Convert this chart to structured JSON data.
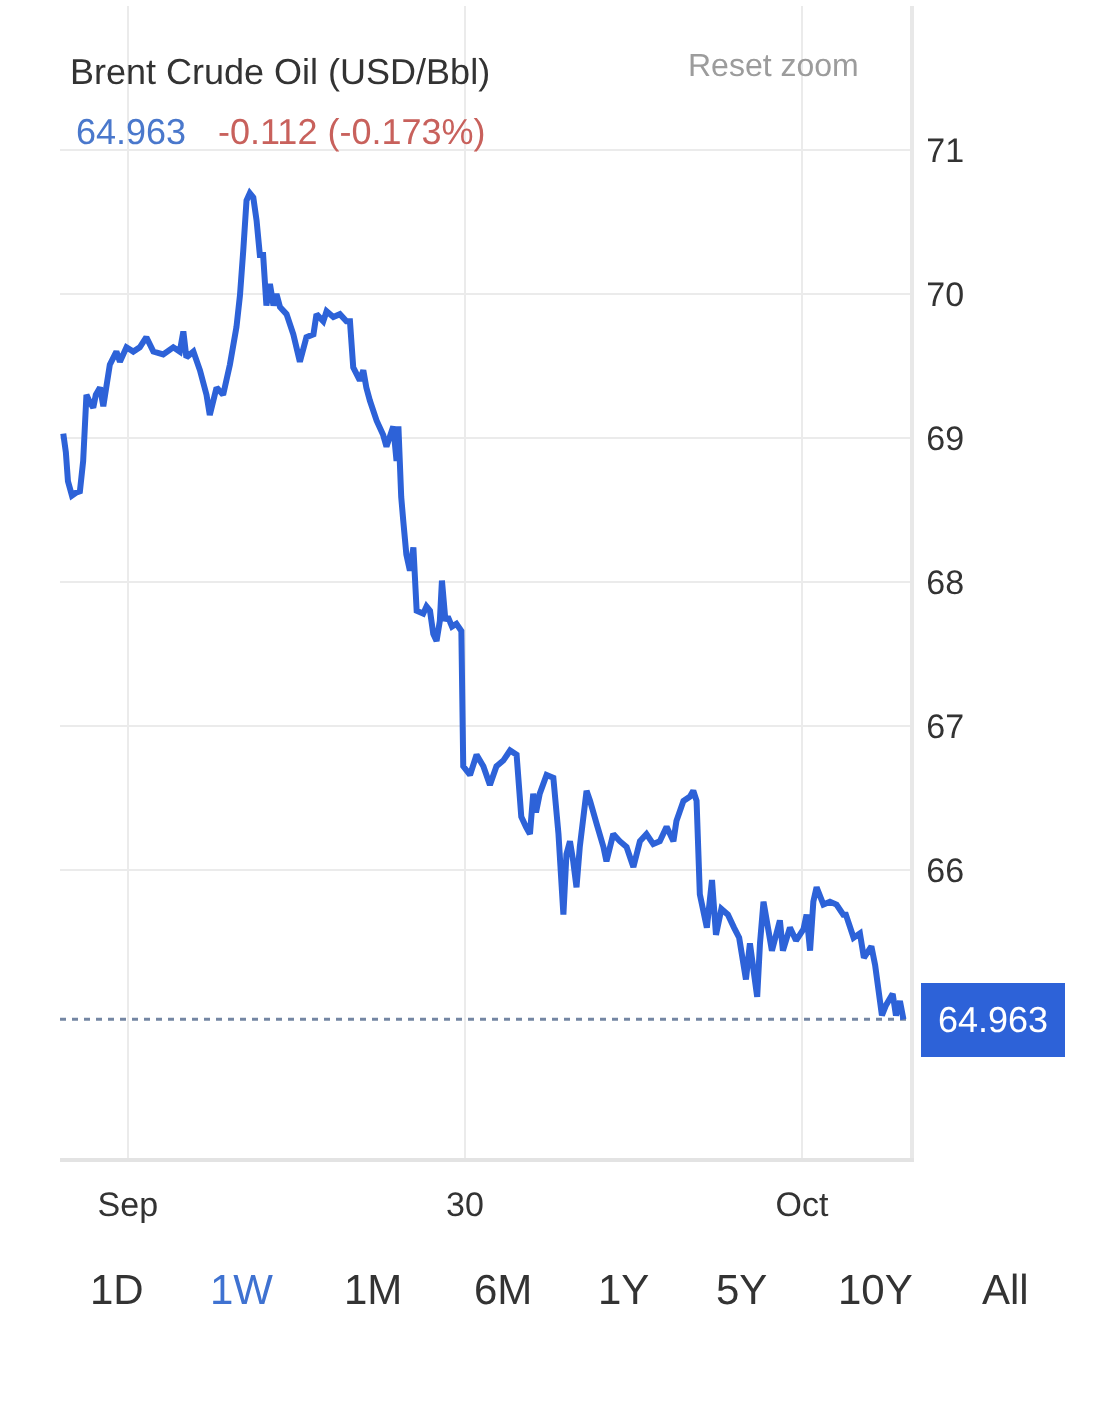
{
  "chart_data": {
    "type": "line",
    "title": "Brent Crude Oil (USD/Bbl)",
    "subtitle": "64.963",
    "annotations": [
      "-0.112 (-0.173%)",
      "Reset zoom",
      "1D",
      "1W",
      "1M",
      "6M",
      "1Y",
      "5Y",
      "10Y",
      "All"
    ],
    "x": [
      "--09-28T19:24",
      "--09-28T19:35",
      "--09-28T19:44",
      "--09-28T20:01",
      "--09-28T20:18",
      "--09-28T20:35",
      "--09-28T20:49",
      "--09-28T21:03",
      "--09-28T21:17",
      "--09-28T21:32",
      "--09-28T21:43",
      "--09-28T22:01",
      "--09-28T22:15",
      "--09-28T22:43",
      "--09-28T23:11",
      "--09-28T23:26",
      "--09-28T23:54",
      "--09-29T00:23",
      "--09-29T00:51",
      "--09-29T01:19",
      "--09-29T01:49",
      "--09-29T02:31",
      "--09-29T03:14",
      "--09-29T03:42",
      "--09-29T03:57",
      "--09-29T04:10",
      "--09-29T04:40",
      "--09-29T05:08",
      "--09-29T05:36",
      "--09-29T05:50",
      "--09-29T06:19",
      "--09-29T06:47",
      "--09-29T07:16",
      "--09-29T07:44",
      "--09-29T07:59",
      "--09-29T08:13",
      "--09-29T08:27",
      "--09-29T08:41",
      "--09-29T08:56",
      "--09-29T09:10",
      "--09-29T09:24",
      "--09-29T09:38",
      "--09-29T09:52",
      "--09-29T10:07",
      "--09-29T10:22",
      "--09-29T10:35",
      "--09-29T10:50",
      "--09-29T11:18",
      "--09-29T11:47",
      "--09-29T12:15",
      "--09-29T12:43",
      "--09-29T13:13",
      "--09-29T13:26",
      "--09-29T13:55",
      "--09-29T14:09",
      "--09-29T14:38",
      "--09-29T15:06",
      "--09-29T15:34",
      "--09-29T15:49",
      "--09-29T16:03",
      "--09-29T16:31",
      "--09-29T16:46",
      "--09-29T16:59",
      "--09-29T17:14",
      "--09-29T17:43",
      "--09-29T18:11",
      "--09-29T18:25",
      "--09-29T18:54",
      "--09-29T19:08",
      "--09-29T19:16",
      "--09-29T19:28",
      "--09-29T19:37",
      "--09-29T19:50",
      "--09-29T20:05",
      "--09-29T20:20",
      "--09-29T20:34",
      "--09-29T21:02",
      "--09-29T21:16",
      "--09-29T21:31",
      "--09-29T21:45",
      "--09-29T21:59",
      "--09-29T22:13",
      "--09-29T22:22",
      "--09-29T22:37",
      "--09-29T22:47",
      "--09-29T23:05",
      "--09-29T23:24",
      "--09-29T23:45",
      "--09-29T23:53",
      "--09-30T00:22",
      "--09-30T00:50",
      "--09-30T01:19",
      "--09-30T01:47",
      "--09-30T02:15",
      "--09-30T02:44",
      "--09-30T03:13",
      "--09-30T03:41",
      "--09-30T04:01",
      "--09-30T04:21",
      "--09-30T04:38",
      "--09-30T04:52",
      "--09-30T05:04",
      "--09-30T05:20",
      "--09-30T05:49",
      "--09-30T06:18",
      "--09-30T06:40",
      "--09-30T07:01",
      "--09-30T07:14",
      "--09-30T07:29",
      "--09-30T07:43",
      "--09-30T07:57",
      "--09-30T08:11",
      "--09-30T08:40",
      "--09-30T08:55",
      "--09-30T09:23",
      "--09-30T09:52",
      "--09-30T10:05",
      "--09-30T10:34",
      "--09-30T11:02",
      "--09-30T11:31",
      "--09-30T12:00",
      "--09-30T12:28",
      "--09-30T12:56",
      "--09-30T13:25",
      "--09-30T13:53",
      "--09-30T14:22",
      "--09-30T14:51",
      "--09-30T15:04",
      "--09-30T15:34",
      "--09-30T16:02",
      "--09-30T16:16",
      "--09-30T16:30",
      "--09-30T16:44",
      "--09-30T17:14",
      "--09-30T17:36",
      "--09-30T17:53",
      "--09-30T18:16",
      "--09-30T18:44",
      "--09-30T19:10",
      "--09-30T19:32",
      "--09-30T20:01",
      "--09-30T20:18",
      "--09-30T20:49",
      "--09-30T21:01",
      "--09-30T21:16",
      "--09-30T21:35",
      "--09-30T21:52",
      "--09-30T22:26",
      "--09-30T22:39",
      "--09-30T23:09",
      "--09-30T23:35",
      "--10-01T00:07",
      "--10-01T00:20",
      "--10-01T00:35",
      "--10-01T00:49",
      "--10-01T01:03",
      "--10-01T01:32",
      "--10-01T02:00",
      "--10-01T02:28",
      "--10-01T02:57",
      "--10-01T03:08",
      "--10-01T03:41",
      "--10-01T04:08",
      "--10-01T04:25",
      "--10-01T04:57",
      "--10-01T05:13",
      "--10-01T05:42",
      "--10-01T05:59",
      "--10-01T06:28",
      "--10-01T06:42",
      "--10-01T06:59",
      "--10-01T07:14"
    ],
    "series": [
      {
        "color": "#2d62d8",
        "values": [
          69.03,
          68.9,
          68.7,
          68.6,
          68.62,
          68.63,
          68.84,
          69.3,
          69.25,
          69.21,
          69.3,
          69.35,
          69.22,
          69.51,
          69.6,
          69.53,
          69.63,
          69.6,
          69.63,
          69.7,
          69.6,
          69.58,
          69.63,
          69.6,
          69.74,
          69.56,
          69.6,
          69.47,
          69.3,
          69.16,
          69.35,
          69.3,
          69.51,
          69.77,
          69.99,
          70.3,
          70.65,
          70.7,
          70.67,
          70.51,
          70.27,
          70.27,
          69.92,
          70.07,
          69.92,
          70.0,
          69.91,
          69.86,
          69.72,
          69.53,
          69.7,
          69.72,
          69.86,
          69.81,
          69.88,
          69.84,
          69.86,
          69.81,
          69.81,
          69.49,
          69.4,
          69.47,
          69.35,
          69.26,
          69.12,
          69.02,
          68.94,
          69.08,
          68.84,
          69.08,
          68.59,
          68.42,
          68.19,
          68.08,
          68.24,
          67.8,
          67.78,
          67.83,
          67.8,
          67.64,
          67.59,
          67.73,
          68.01,
          67.73,
          67.76,
          67.69,
          67.71,
          67.66,
          66.72,
          66.66,
          66.8,
          66.72,
          66.59,
          66.72,
          66.76,
          66.83,
          66.8,
          66.37,
          66.3,
          66.25,
          66.53,
          66.4,
          66.53,
          66.66,
          66.64,
          66.25,
          65.69,
          66.11,
          66.2,
          66.06,
          65.88,
          66.16,
          66.55,
          66.48,
          66.32,
          66.16,
          66.06,
          66.25,
          66.2,
          66.16,
          66.02,
          66.2,
          66.25,
          66.18,
          66.2,
          66.3,
          66.2,
          66.34,
          66.48,
          66.51,
          66.55,
          66.48,
          65.83,
          65.6,
          65.93,
          65.55,
          65.73,
          65.69,
          65.6,
          65.53,
          65.24,
          65.49,
          65.12,
          65.49,
          65.78,
          65.6,
          65.44,
          65.65,
          65.44,
          65.6,
          65.51,
          65.59,
          65.69,
          65.44,
          65.78,
          65.88,
          65.76,
          65.78,
          65.76,
          65.69,
          65.69,
          65.53,
          65.56,
          65.39,
          65.47,
          65.34,
          64.99,
          65.06,
          65.14,
          64.99,
          65.09,
          64.963
        ]
      }
    ],
    "xlim": [
      "--09-28T19:10",
      "--10-01T07:42"
    ],
    "xticks": [
      {
        "value": "--09-29",
        "label": "Sep"
      },
      {
        "value": "--09-30",
        "label": "30"
      },
      {
        "value": "--10-01",
        "label": "Oct"
      }
    ],
    "ylim": [
      64,
      72
    ],
    "yticks": [
      66,
      67,
      68,
      69,
      70,
      71
    ],
    "ref_lines": [
      {
        "axis": "y",
        "value": 64.963,
        "label": "64.963",
        "color": "#7486a3",
        "line_style": "dotted"
      }
    ],
    "grid": true,
    "line_style": "solid"
  }
}
